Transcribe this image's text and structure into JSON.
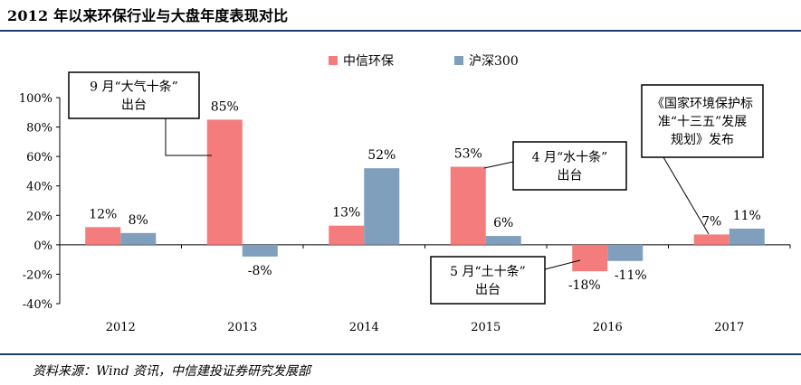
{
  "title": "2012 年以来环保行业与大盘年度表现对比",
  "source": "资料来源：Wind 资讯，中信建投证券研究发展部",
  "chart_data": {
    "type": "bar",
    "categories": [
      "2012",
      "2013",
      "2014",
      "2015",
      "2016",
      "2017"
    ],
    "series": [
      {
        "name": "中信环保",
        "color": "#f47c7c",
        "values": [
          12,
          85,
          13,
          53,
          -18,
          7
        ]
      },
      {
        "name": "沪深300",
        "color": "#7f9fbc",
        "values": [
          8,
          -8,
          52,
          6,
          -11,
          11
        ]
      }
    ],
    "data_labels": {
      "中信环保": [
        "12%",
        "85%",
        "13%",
        "53%",
        "-18%",
        "7%"
      ],
      "沪深300": [
        "8%",
        "-8%",
        "52%",
        "6%",
        "-11%",
        "11%"
      ]
    },
    "ylim": [
      -40,
      100
    ],
    "yticks": [
      -40,
      -20,
      0,
      20,
      40,
      60,
      80,
      100
    ],
    "ytick_labels": [
      "-40%",
      "-20%",
      "0%",
      "20%",
      "40%",
      "60%",
      "80%",
      "100%"
    ],
    "xlabel": "",
    "ylabel": "",
    "legend_position": "top",
    "annotations": [
      {
        "lines": [
          "9 月“大气十条”",
          "出台"
        ],
        "category": "2013",
        "series": "中信环保"
      },
      {
        "lines": [
          "4 月“水十条”",
          "出台"
        ],
        "category": "2015",
        "series": "中信环保"
      },
      {
        "lines": [
          "5 月“土十条”",
          "出台"
        ],
        "category": "2016",
        "series": "中信环保"
      },
      {
        "lines": [
          "《国家环境保护标",
          "准“十三五”发展",
          "规划》发布"
        ],
        "category": "2017",
        "series": "中信环保"
      }
    ]
  }
}
